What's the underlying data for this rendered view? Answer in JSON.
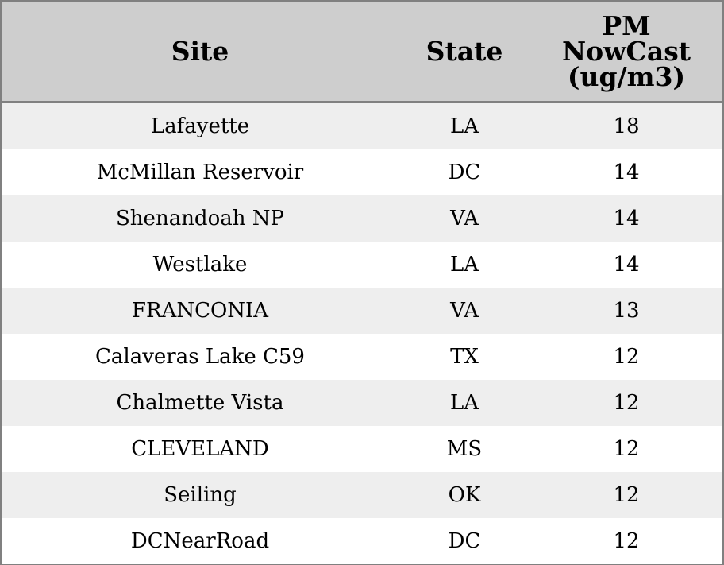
{
  "chart_data": {
    "type": "table",
    "columns": [
      "Site",
      "State",
      "PM\nNowCast\n(ug/m3)"
    ],
    "rows": [
      {
        "site": "Lafayette",
        "state": "LA",
        "value": "18"
      },
      {
        "site": "McMillan Reservoir",
        "state": "DC",
        "value": "14"
      },
      {
        "site": "Shenandoah NP",
        "state": "VA",
        "value": "14"
      },
      {
        "site": "Westlake",
        "state": "LA",
        "value": "14"
      },
      {
        "site": "FRANCONIA",
        "state": "VA",
        "value": "13"
      },
      {
        "site": "Calaveras Lake C59",
        "state": "TX",
        "value": "12"
      },
      {
        "site": "Chalmette Vista",
        "state": "LA",
        "value": "12"
      },
      {
        "site": "CLEVELAND",
        "state": "MS",
        "value": "12"
      },
      {
        "site": "Seiling",
        "state": "OK",
        "value": "12"
      },
      {
        "site": "DCNearRoad",
        "state": "DC",
        "value": "12"
      }
    ],
    "header_background": "#cecece",
    "stripe_background": "#eeeeee",
    "border_color": "#808080"
  }
}
